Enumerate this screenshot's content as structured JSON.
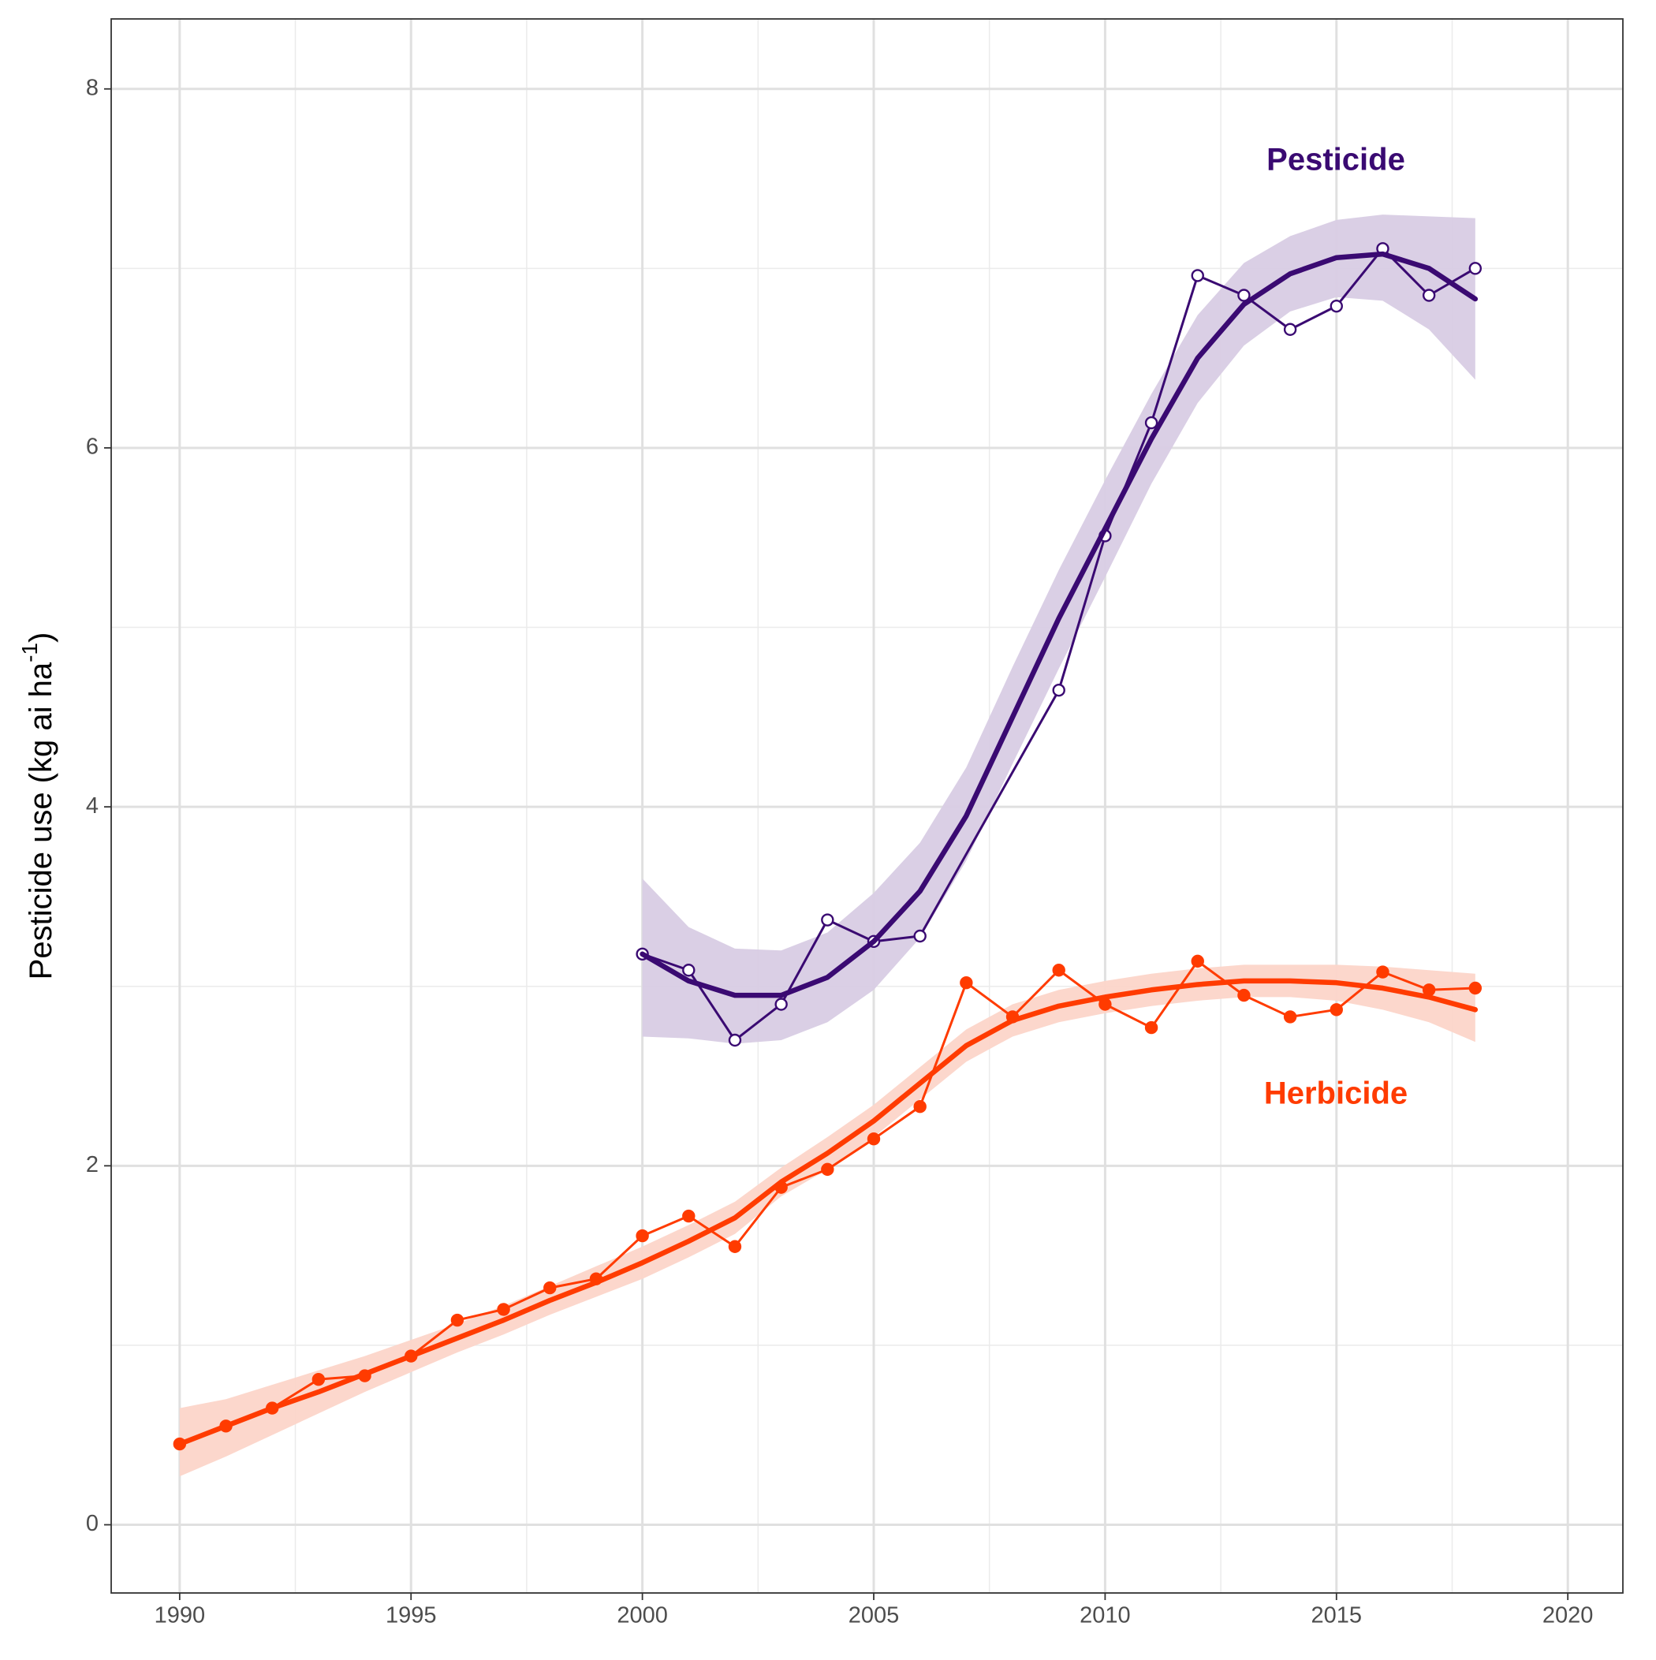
{
  "chart_data": {
    "type": "line",
    "y_label": {
      "text": "Pesticide use (kg ai ha",
      "superscript": "-1",
      "suffix": ")"
    },
    "xlim": [
      1988.52,
      2021.19
    ],
    "xticks": [
      1990,
      1995,
      2000,
      2005,
      2010,
      2015,
      2020
    ],
    "ylim": [
      -0.38,
      8.39
    ],
    "yticks": [
      0,
      2,
      4,
      6,
      8
    ],
    "grid": true,
    "series": [
      {
        "name": "Pesticide",
        "color": "#3a0a72",
        "band_color": "#d8cce4",
        "marker": "open",
        "x": [
          2000,
          2001,
          2002,
          2003,
          2004,
          2005,
          2006,
          2009,
          2010,
          2011,
          2012,
          2013,
          2014,
          2015,
          2016,
          2017,
          2018
        ],
        "values": [
          3.18,
          3.09,
          2.7,
          2.9,
          3.37,
          3.25,
          3.28,
          4.65,
          5.51,
          6.14,
          6.96,
          6.85,
          6.66,
          6.79,
          7.11,
          6.85,
          7.0
        ],
        "fit_x": [
          2000,
          2001,
          2002,
          2003,
          2004,
          2005,
          2006,
          2007,
          2008,
          2009,
          2010,
          2011,
          2012,
          2013,
          2014,
          2015,
          2016,
          2017,
          2018
        ],
        "fit": [
          3.18,
          3.03,
          2.95,
          2.95,
          3.05,
          3.25,
          3.53,
          3.95,
          4.5,
          5.05,
          5.55,
          6.05,
          6.5,
          6.8,
          6.97,
          7.06,
          7.08,
          7.0,
          6.83
        ],
        "fit_lower": [
          2.72,
          2.71,
          2.68,
          2.7,
          2.8,
          2.98,
          3.27,
          3.7,
          4.24,
          4.77,
          5.28,
          5.8,
          6.25,
          6.57,
          6.76,
          6.84,
          6.82,
          6.66,
          6.38
        ],
        "fit_upper": [
          3.6,
          3.33,
          3.21,
          3.2,
          3.3,
          3.52,
          3.8,
          4.22,
          4.78,
          5.32,
          5.82,
          6.3,
          6.74,
          7.03,
          7.18,
          7.27,
          7.3,
          7.29,
          7.28
        ]
      },
      {
        "name": "Herbicide",
        "color": "#ff3b00",
        "band_color": "#fcd5c9",
        "marker": "filled",
        "x": [
          1990,
          1991,
          1992,
          1993,
          1994,
          1995,
          1996,
          1997,
          1998,
          1999,
          2000,
          2001,
          2002,
          2003,
          2004,
          2005,
          2006,
          2007,
          2008,
          2009,
          2010,
          2011,
          2012,
          2013,
          2014,
          2015,
          2016,
          2017,
          2018
        ],
        "values": [
          0.45,
          0.55,
          0.65,
          0.81,
          0.83,
          0.94,
          1.14,
          1.2,
          1.32,
          1.37,
          1.61,
          1.72,
          1.55,
          1.88,
          1.98,
          2.15,
          2.33,
          3.02,
          2.83,
          3.09,
          2.9,
          2.77,
          3.14,
          2.95,
          2.83,
          2.87,
          3.08,
          2.98,
          2.99
        ],
        "fit_x": [
          1990,
          1991,
          1992,
          1993,
          1994,
          1995,
          1996,
          1997,
          1998,
          1999,
          2000,
          2001,
          2002,
          2003,
          2004,
          2005,
          2006,
          2007,
          2008,
          2009,
          2010,
          2011,
          2012,
          2013,
          2014,
          2015,
          2016,
          2017,
          2018
        ],
        "fit": [
          0.45,
          0.55,
          0.65,
          0.74,
          0.84,
          0.94,
          1.04,
          1.14,
          1.25,
          1.35,
          1.46,
          1.58,
          1.71,
          1.91,
          2.07,
          2.25,
          2.46,
          2.67,
          2.81,
          2.89,
          2.94,
          2.98,
          3.01,
          3.03,
          3.03,
          3.02,
          2.99,
          2.94,
          2.87
        ],
        "fit_lower": [
          0.27,
          0.38,
          0.5,
          0.62,
          0.74,
          0.85,
          0.96,
          1.06,
          1.17,
          1.27,
          1.37,
          1.49,
          1.62,
          1.83,
          1.98,
          2.16,
          2.37,
          2.58,
          2.72,
          2.8,
          2.85,
          2.89,
          2.92,
          2.94,
          2.94,
          2.92,
          2.87,
          2.8,
          2.69
        ],
        "fit_upper": [
          0.65,
          0.7,
          0.78,
          0.86,
          0.94,
          1.03,
          1.12,
          1.22,
          1.33,
          1.44,
          1.55,
          1.67,
          1.8,
          1.99,
          2.16,
          2.34,
          2.55,
          2.76,
          2.9,
          2.98,
          3.03,
          3.07,
          3.1,
          3.12,
          3.12,
          3.12,
          3.11,
          3.09,
          3.07
        ]
      }
    ]
  }
}
